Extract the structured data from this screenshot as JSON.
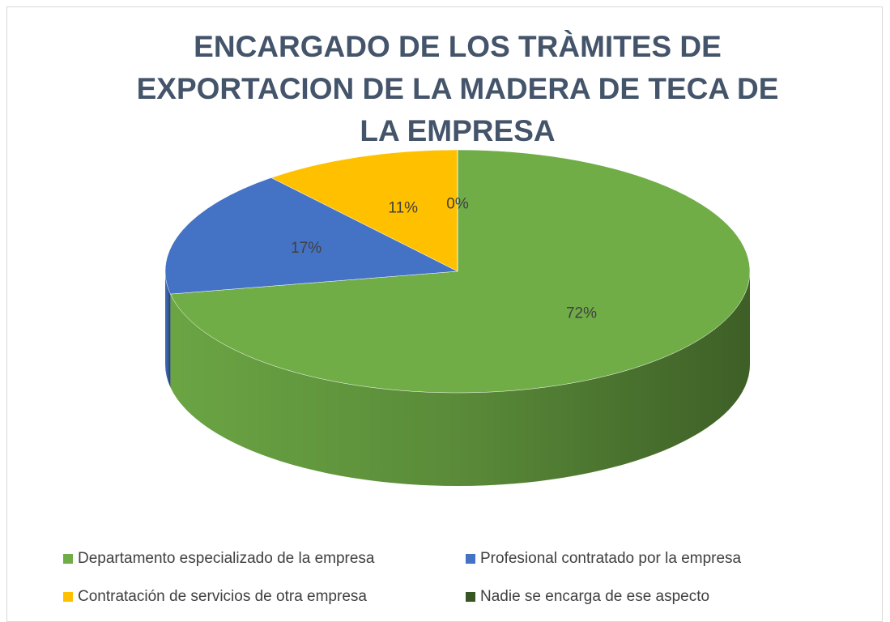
{
  "chart_data": {
    "type": "pie",
    "title": "ENCARGADO DE LOS TRÀMITES DE EXPORTACION DE LA MADERA DE TECA DE LA EMPRESA",
    "categories": [
      "Departamento especializado de la empresa",
      "Profesional contratado por la empresa",
      "Contratación de servicios de otra empresa",
      "Nadie se encarga de ese aspecto"
    ],
    "values": [
      72,
      17,
      11,
      0
    ],
    "value_labels": [
      "72%",
      "17%",
      "11%",
      "0%"
    ],
    "colors": [
      "#70ad47",
      "#4472c4",
      "#ffc000",
      "#375623"
    ],
    "legend": "bottom"
  }
}
